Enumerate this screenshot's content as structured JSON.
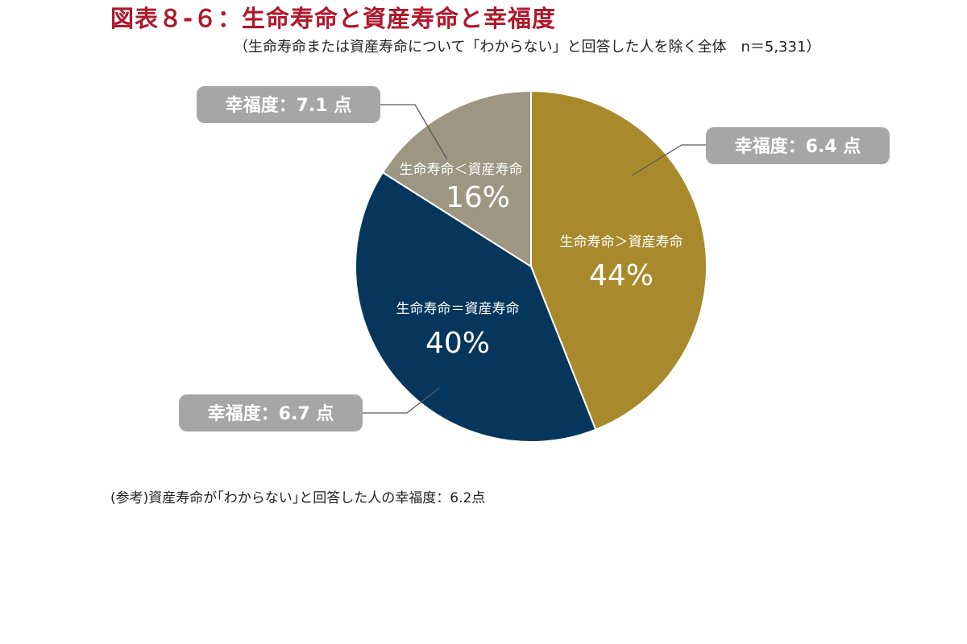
{
  "figure": {
    "title": "図表８-６：生命寿命と資産寿命と幸福度",
    "subtitle": "（生命寿命または資産寿命について「わからない」と回答した人を除く全体　n＝5,331）",
    "note": "(参考)資産寿命が｢わからない｣と回答した人の幸福度：6.2点"
  },
  "chart_data": {
    "type": "pie",
    "start_angle_deg": 0,
    "direction": "clockwise",
    "slices": [
      {
        "label": "生命寿命＞資産寿命",
        "value": 44,
        "value_label": "44%",
        "callout": "幸福度：6.4 点",
        "color": "#a88a2c"
      },
      {
        "label": "生命寿命＝資産寿命",
        "value": 40,
        "value_label": "40%",
        "callout": "幸福度：6.7 点",
        "color": "#06365c"
      },
      {
        "label": "生命寿命＜資産寿命",
        "value": 16,
        "value_label": "16%",
        "callout": "幸福度：7.1 点",
        "color": "#9e9582"
      }
    ],
    "callout_color": "#a6a6a6",
    "leader_color": "#595959"
  }
}
